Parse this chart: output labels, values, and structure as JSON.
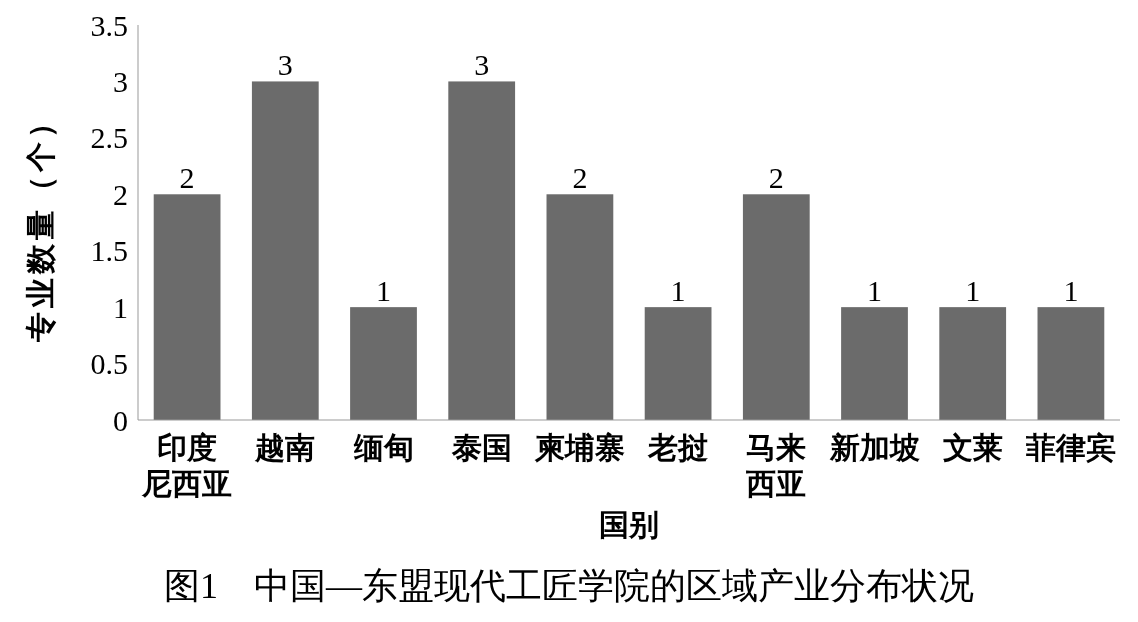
{
  "chart_data": {
    "type": "bar",
    "title": "图1　中国—东盟现代工匠学院的区域产业分布状况",
    "xlabel": "国别",
    "ylabel": "专业数量（个）",
    "categories": [
      "印度尼西亚",
      "越南",
      "缅甸",
      "泰国",
      "柬埔寨",
      "老挝",
      "马来西亚",
      "新加坡",
      "文莱",
      "菲律宾"
    ],
    "values": [
      2,
      3,
      1,
      3,
      2,
      1,
      2,
      1,
      1,
      1
    ],
    "color": "#6b6b6b",
    "ylim": [
      0,
      3.5
    ],
    "yticks": [
      0,
      0.5,
      1,
      1.5,
      2,
      2.5,
      3,
      3.5
    ],
    "data_labels": true,
    "grid": false
  }
}
